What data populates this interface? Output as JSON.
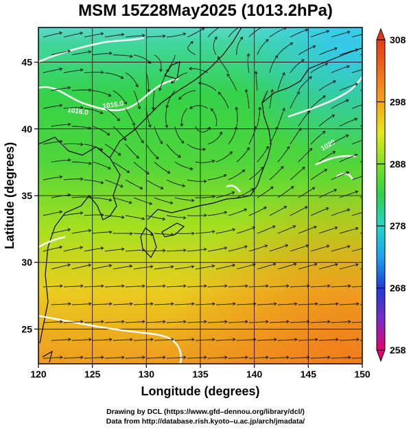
{
  "title": "MSM 15Z28May2025 (1013.2hPa)",
  "axes": {
    "xlabel": "Longitude (degrees)",
    "ylabel": "Latitude  (degrees)",
    "x_ticks": [
      "120",
      "125",
      "130",
      "135",
      "140",
      "145",
      "150"
    ],
    "y_ticks": [
      "25",
      "30",
      "35",
      "40",
      "45"
    ]
  },
  "colorbar": {
    "ticks": [
      "308",
      "298",
      "288",
      "278",
      "268",
      "258"
    ],
    "stops": [
      "#e8006e",
      "#7a2cc8",
      "#1e3cd8",
      "#1aa3f0",
      "#22d6c8",
      "#2ed14a",
      "#7fe020",
      "#e6e81a",
      "#f5a41a",
      "#f06a1c",
      "#e83a1c"
    ]
  },
  "contour_labels": [
    "1016.0",
    "1016.0",
    "1020"
  ],
  "credits": {
    "line1": "Drawing by DCL (https://www.gfd–dennou.org/library/dcl/)",
    "line2": "Data from http://database.rish.kyoto–u.ac.jp/arch/jmadata/"
  },
  "chart_data": {
    "type": "heatmap",
    "title": "MSM 15Z28May2025 (1013.2hPa)",
    "xlabel": "Longitude (degrees)",
    "ylabel": "Latitude  (degrees)",
    "xlim": [
      120,
      150
    ],
    "ylim": [
      22.4,
      47.6
    ],
    "color_range": [
      258,
      308
    ],
    "grid": true,
    "overlay": "streamlines"
  }
}
